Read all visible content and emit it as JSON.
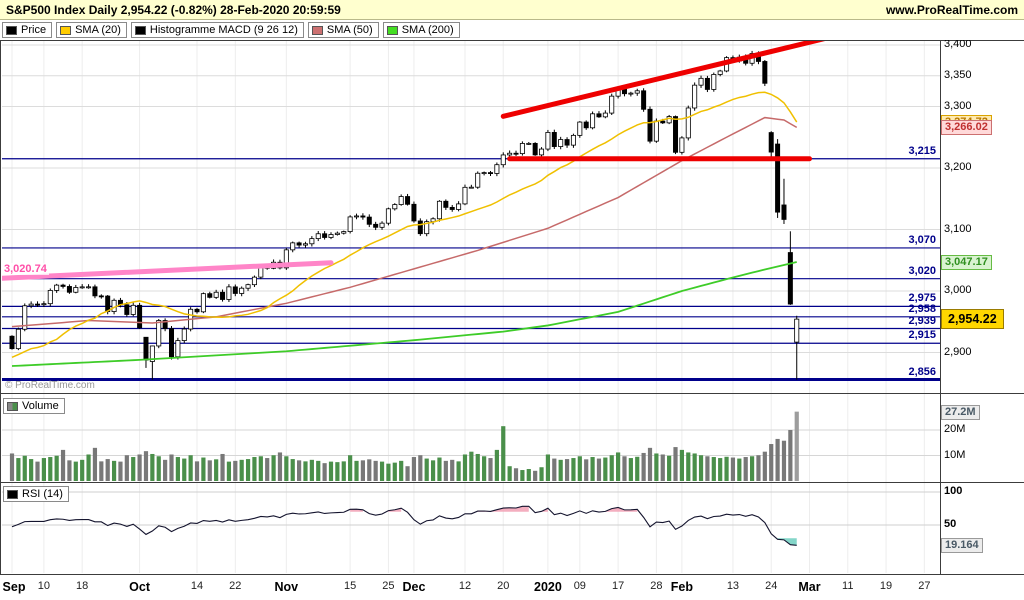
{
  "header": {
    "title": "S&P500 Index Daily 2,954.22 (-0.82%) 28-Feb-2020 20:59:59",
    "website": "www.ProRealTime.com"
  },
  "legend_items": [
    {
      "label": "Price",
      "color": "#000000"
    },
    {
      "label": "SMA (20)",
      "color": "#ffcc00"
    },
    {
      "label": "Histogramme MACD (9 26 12)",
      "color": "#000000"
    },
    {
      "label": "SMA (50)",
      "color": "#cc7070"
    },
    {
      "label": "SMA (200)",
      "color": "#44dd22"
    }
  ],
  "watermark": "© ProRealTime.com",
  "panes": {
    "volume_legend": "Volume",
    "rsi_legend": "RSI (14)"
  },
  "chart_data": {
    "type": "candlestick",
    "instrument": "S&P500 Index",
    "timeframe": "Daily",
    "last_price": 2954.22,
    "change_pct": -0.82,
    "last_update": "28-Feb-2020 20:59:59",
    "price_axis": {
      "visible_min": 2840,
      "visible_max": 3410,
      "tick_labels": [
        {
          "value": 3400,
          "label": "3,400"
        },
        {
          "value": 3350,
          "label": "3,350"
        },
        {
          "value": 3300,
          "label": "3,300"
        },
        {
          "value": 3200,
          "label": "3,200"
        },
        {
          "value": 3100,
          "label": "3,100"
        },
        {
          "value": 3000,
          "label": "3,000"
        },
        {
          "value": 2900,
          "label": "2,900"
        }
      ]
    },
    "levels": [
      {
        "value": 3215,
        "label": "3,215"
      },
      {
        "value": 3070,
        "label": "3,070"
      },
      {
        "value": 3020,
        "label": "3,020"
      },
      {
        "value": 2975,
        "label": "2,975"
      },
      {
        "value": 2958,
        "label": "2,958"
      },
      {
        "value": 2939,
        "label": "2,939"
      },
      {
        "value": 2915,
        "label": "2,915"
      },
      {
        "value": 2856,
        "label": "2,856",
        "thick": true
      }
    ],
    "indicator_badges": [
      {
        "name": "sma20",
        "label": "3,274.72",
        "value": 3274.72,
        "bg": "#ffeaaf",
        "fg": "#b87800",
        "border": "#d9a300"
      },
      {
        "name": "sma50",
        "label": "3,266.02",
        "value": 3266.02,
        "bg": "#ffd9d9",
        "fg": "#c03030",
        "border": "#cc7070"
      },
      {
        "name": "sma200",
        "label": "3,047.17",
        "value": 3047.17,
        "bg": "#d9f3d0",
        "fg": "#2f8f1f",
        "border": "#66bb44"
      }
    ],
    "last_price_badge": {
      "label": "2,954.22",
      "value": 2954.22
    },
    "sma_colors": {
      "sma20": "#f0c000",
      "sma50": "#c66a6a",
      "sma200": "#3ecc28"
    },
    "seed_closes": [
      2953.56,
      2932.05,
      2844.74,
      2881.77,
      2883.98,
      2938.09,
      2918.65,
      2882.7,
      2926.32,
      2840.6,
      2847.6,
      2888.68,
      2923.65,
      2900.51,
      2924.43,
      2847.11,
      2878.38,
      2869.16,
      2887.94,
      2924.58,
      2926.46
    ],
    "closes": [
      2906.27,
      2937.78,
      2976.0,
      2978.71,
      2978.43,
      2979.39,
      3000.93,
      3009.57,
      3007.39,
      2997.96,
      3005.7,
      3006.73,
      3006.79,
      2992.07,
      2991.78,
      2966.6,
      2984.87,
      2977.62,
      2961.79,
      2976.74,
      2940.25,
      2887.61,
      2910.63,
      2952.01,
      2938.79,
      2893.06,
      2919.4,
      2938.13,
      2970.27,
      2966.15,
      2995.68,
      2989.69,
      2997.95,
      2986.2,
      3006.72,
      2995.99,
      3004.52,
      3010.29,
      3022.55,
      3039.42,
      3036.89,
      3046.77,
      3037.56,
      3066.91,
      3078.27,
      3074.62,
      3076.78,
      3085.18,
      3093.08,
      3087.01,
      3091.84,
      3094.04,
      3096.63,
      3120.46,
      3122.03,
      3120.18,
      3108.46,
      3103.54,
      3110.29,
      3133.64,
      3140.52,
      3153.63,
      3140.98,
      3113.87,
      3093.2,
      3112.76,
      3117.43,
      3145.91,
      3135.96,
      3132.52,
      3141.63,
      3168.57,
      3168.8,
      3191.45,
      3192.52,
      3191.14,
      3205.37,
      3221.22,
      3224.01,
      3223.38,
      3239.91,
      3240.02,
      3221.29,
      3230.78,
      3257.85,
      3234.85,
      3246.28,
      3237.18,
      3253.05,
      3274.7,
      3265.35,
      3288.13,
      3283.15,
      3289.29,
      3316.81,
      3329.62,
      3320.79,
      3321.75,
      3325.54,
      3295.47,
      3243.63,
      3276.24,
      3273.4,
      3283.66,
      3225.52,
      3248.92,
      3297.59,
      3334.69,
      3345.78,
      3327.71,
      3352.09,
      3357.75,
      3379.45,
      3373.94,
      3380.16,
      3370.29,
      3386.15,
      3373.23,
      3337.75,
      3225.89,
      3128.21,
      3116.39,
      2978.76,
      2954.22
    ],
    "ohlc_overrides": {
      "21": [
        2924.78,
        2924.78,
        2874.93,
        2887.61
      ],
      "22": [
        2885.38,
        2911.13,
        2855.94,
        2910.63
      ],
      "119": [
        3257.61,
        3259.81,
        3214.65,
        3225.89
      ],
      "120": [
        3238.94,
        3246.99,
        3118.77,
        3128.21
      ],
      "121": [
        3139.9,
        3182.51,
        3108.99,
        3116.39
      ],
      "122": [
        3062.54,
        3097.07,
        2977.39,
        2978.76
      ],
      "123": [
        2916.9,
        2959.72,
        2855.84,
        2954.22
      ]
    },
    "sma50_points": [
      [
        0,
        2942
      ],
      [
        12,
        2952
      ],
      [
        22,
        2948
      ],
      [
        32,
        2958
      ],
      [
        43,
        2980
      ],
      [
        53,
        3006
      ],
      [
        63,
        3036
      ],
      [
        73,
        3066
      ],
      [
        84,
        3102
      ],
      [
        95,
        3152
      ],
      [
        105,
        3212
      ],
      [
        112,
        3250
      ],
      [
        118,
        3282
      ],
      [
        121,
        3278
      ],
      [
        123,
        3266.02
      ]
    ],
    "sma200_points": [
      [
        0,
        2878
      ],
      [
        20,
        2888
      ],
      [
        43,
        2902
      ],
      [
        63,
        2920
      ],
      [
        77,
        2934
      ],
      [
        84,
        2944
      ],
      [
        95,
        2966
      ],
      [
        105,
        3000
      ],
      [
        113,
        3022
      ],
      [
        118,
        3035
      ],
      [
        123,
        3047.17
      ]
    ],
    "trendlines": [
      {
        "name": "rising-resistance",
        "color": "#ee0000",
        "width": 5,
        "from_index": 77,
        "from_price": 3284,
        "to_index": 128,
        "to_price": 3412
      },
      {
        "name": "horizontal-resistance",
        "color": "#ee0000",
        "width": 5,
        "from_index": 78,
        "from_price": 3215,
        "to_index": 125,
        "to_price": 3215
      },
      {
        "name": "pink-support",
        "color": "#ff85c8",
        "width": 5,
        "from_index": -1.5,
        "from_price": 3020.74,
        "to_index": 50,
        "to_price": 3046,
        "label": "3,020.74",
        "label_color": "#ff4fa8"
      }
    ],
    "volume": {
      "values": [
        10.8,
        9.0,
        9.9,
        8.6,
        7.6,
        9.0,
        9.4,
        9.9,
        12.2,
        8.1,
        7.6,
        8.3,
        10.4,
        13.0,
        7.7,
        8.6,
        7.9,
        7.6,
        10.1,
        9.4,
        10.4,
        11.7,
        10.6,
        9.7,
        8.3,
        10.4,
        9.4,
        8.8,
        10.1,
        7.7,
        9.2,
        8.1,
        8.5,
        10.6,
        7.6,
        7.9,
        8.3,
        8.6,
        9.4,
        9.7,
        9.0,
        10.1,
        11.2,
        9.7,
        8.6,
        8.1,
        7.7,
        8.3,
        7.9,
        7.0,
        7.6,
        7.4,
        7.7,
        10.1,
        7.9,
        8.1,
        8.5,
        7.9,
        7.6,
        6.8,
        7.2,
        7.9,
        5.8,
        9.4,
        10.1,
        8.8,
        8.1,
        9.2,
        7.9,
        8.3,
        7.7,
        10.4,
        11.5,
        10.6,
        9.7,
        9.0,
        12.2,
        21.5,
        5.8,
        5.0,
        4.3,
        4.7,
        4.0,
        5.4,
        10.4,
        8.8,
        8.3,
        8.6,
        9.0,
        9.7,
        8.5,
        9.4,
        8.8,
        9.2,
        10.1,
        11.2,
        9.7,
        9.0,
        9.5,
        11.0,
        13.0,
        10.8,
        10.4,
        9.9,
        13.3,
        12.2,
        11.2,
        10.8,
        10.1,
        9.7,
        9.4,
        9.0,
        9.5,
        9.2,
        8.8,
        9.4,
        9.7,
        10.1,
        11.5,
        14.5,
        16.5,
        15.8,
        20.0,
        27.2
      ],
      "axis_ticks": [
        {
          "value": 20,
          "label": "20M"
        },
        {
          "value": 10,
          "label": "10M"
        }
      ],
      "last_badge": {
        "label": "27.2M",
        "value": 27.2
      },
      "up_color": "#4a8f4a",
      "down_color": "#787878",
      "last_color": "#9d9d9d"
    },
    "rsi": {
      "period": 14,
      "axis_ticks": [
        {
          "value": 100,
          "label": "100"
        },
        {
          "value": 50,
          "label": "50"
        }
      ],
      "last_badge": {
        "label": "19.164",
        "value": 19.164
      },
      "overbought": 70,
      "oversold": 30,
      "line_color": "#14142e",
      "overbought_fill": "#f2a0b4",
      "oversold_fill": "#6fcfbf"
    },
    "x_ticks": [
      {
        "label": "Sep",
        "index": 0,
        "bold": true
      },
      {
        "label": "10",
        "index": 5
      },
      {
        "label": "18",
        "index": 11
      },
      {
        "label": "Oct",
        "index": 20,
        "bold": true
      },
      {
        "label": "14",
        "index": 29
      },
      {
        "label": "22",
        "index": 35
      },
      {
        "label": "Nov",
        "index": 43,
        "bold": true
      },
      {
        "label": "15",
        "index": 53
      },
      {
        "label": "25",
        "index": 59
      },
      {
        "label": "Dec",
        "index": 63,
        "bold": true
      },
      {
        "label": "12",
        "index": 71
      },
      {
        "label": "20",
        "index": 77
      },
      {
        "label": "2020",
        "index": 84,
        "bold": true
      },
      {
        "label": "09",
        "index": 89
      },
      {
        "label": "17",
        "index": 95
      },
      {
        "label": "28",
        "index": 101
      },
      {
        "label": "Feb",
        "index": 105,
        "bold": true
      },
      {
        "label": "13",
        "index": 113
      },
      {
        "label": "24",
        "index": 119
      },
      {
        "label": "Mar",
        "index": 125,
        "bold": true
      },
      {
        "label": "11",
        "index": 131
      },
      {
        "label": "19",
        "index": 137
      },
      {
        "label": "27",
        "index": 143
      }
    ]
  }
}
